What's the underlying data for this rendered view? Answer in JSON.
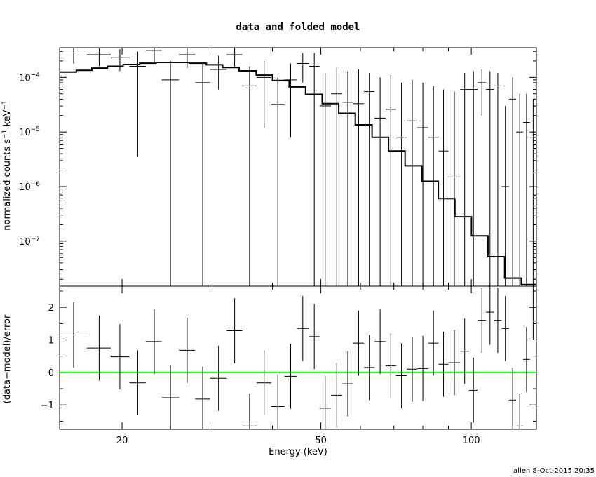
{
  "title": "data and folded model",
  "xlabel": "Energy (keV)",
  "stamp": "allen  8-Oct-2015 20:35",
  "colors": {
    "axes": "#000000",
    "zero_line": "#00ff00"
  },
  "chart_data": [
    {
      "type": "line",
      "panel": "top",
      "ylabel": "normalized counts s⁻¹ keV⁻¹",
      "xscale": "log",
      "yscale": "log",
      "xlim": [
        15,
        135
      ],
      "ylim": [
        1.5e-08,
        0.00035
      ],
      "xticks": [
        {
          "v": 20,
          "label": "20"
        },
        {
          "v": 50,
          "label": "50"
        },
        {
          "v": 100,
          "label": "100"
        }
      ],
      "yticks": [
        {
          "v": 0.0001,
          "base": "10",
          "exp": "−4"
        },
        {
          "v": 1e-05,
          "base": "10",
          "exp": "−5"
        },
        {
          "v": 1e-06,
          "base": "10",
          "exp": "−6"
        },
        {
          "v": 1e-07,
          "base": "10",
          "exp": "−7"
        }
      ],
      "series": [
        {
          "role": "model-step",
          "edges": [
            15,
            16.2,
            17.4,
            18.7,
            20.1,
            21.7,
            23.4,
            25.3,
            27.3,
            29.5,
            31.8,
            34.3,
            37.1,
            40.0,
            43.2,
            46.6,
            50.3,
            54.3,
            58.6,
            63.3,
            68.3,
            73.7,
            79.6,
            85.9,
            92.7,
            100.1,
            108.0,
            116.6,
            125.9,
            135
          ],
          "values": [
            0.000125,
            0.000135,
            0.000148,
            0.00016,
            0.000172,
            0.000182,
            0.000188,
            0.000188,
            0.000182,
            0.00017,
            0.000152,
            0.000132,
            0.00011,
            8.8e-05,
            6.7e-05,
            4.9e-05,
            3.3e-05,
            2.2e-05,
            1.35e-05,
            8e-06,
            4.5e-06,
            2.4e-06,
            1.25e-06,
            6e-07,
            2.8e-07,
            1.25e-07,
            5.2e-08,
            2.1e-08,
            1.6e-08
          ]
        },
        {
          "role": "data",
          "points": [
            {
              "x": 16.0,
              "xlo": 15.0,
              "xhi": 17.0,
              "y": 0.00028,
              "ylo": 0.00018,
              "yhi": 0.00035
            },
            {
              "x": 18.0,
              "xlo": 17.0,
              "xhi": 19.0,
              "y": 0.00026,
              "ylo": 0.00016,
              "yhi": 0.00034
            },
            {
              "x": 19.8,
              "xlo": 19.0,
              "xhi": 20.7,
              "y": 0.00023,
              "ylo": 0.00013,
              "yhi": 0.00033
            },
            {
              "x": 21.5,
              "xlo": 20.7,
              "xhi": 22.3,
              "y": 0.00016,
              "ylo": 3.5e-06,
              "yhi": 0.0003
            },
            {
              "x": 23.2,
              "xlo": 22.3,
              "xhi": 24.0,
              "y": 0.00031,
              "ylo": 0.00018,
              "yhi": 0.00035
            },
            {
              "x": 25.0,
              "xlo": 24.0,
              "xhi": 26.0,
              "y": 9e-05,
              "ylo": 1.5e-08,
              "yhi": 0.0002
            },
            {
              "x": 27.0,
              "xlo": 26.0,
              "xhi": 28.0,
              "y": 0.00026,
              "ylo": 0.00015,
              "yhi": 0.00035
            },
            {
              "x": 29.0,
              "xlo": 28.0,
              "xhi": 30.0,
              "y": 8e-05,
              "ylo": 1.5e-08,
              "yhi": 0.00018
            },
            {
              "x": 31.2,
              "xlo": 30.0,
              "xhi": 32.4,
              "y": 0.00014,
              "ylo": 6e-05,
              "yhi": 0.00025
            },
            {
              "x": 33.6,
              "xlo": 32.4,
              "xhi": 34.8,
              "y": 0.00026,
              "ylo": 0.00015,
              "yhi": 0.00035
            },
            {
              "x": 36.0,
              "xlo": 34.8,
              "xhi": 37.2,
              "y": 7e-05,
              "ylo": 1.5e-08,
              "yhi": 0.00016
            },
            {
              "x": 38.5,
              "xlo": 37.2,
              "xhi": 39.8,
              "y": 0.0001,
              "ylo": 1.2e-05,
              "yhi": 0.0002
            },
            {
              "x": 41.0,
              "xlo": 39.8,
              "xhi": 42.3,
              "y": 3.2e-05,
              "ylo": 1.5e-08,
              "yhi": 0.0001
            },
            {
              "x": 43.5,
              "xlo": 42.3,
              "xhi": 44.8,
              "y": 9e-05,
              "ylo": 8e-06,
              "yhi": 0.00018
            },
            {
              "x": 46.0,
              "xlo": 44.8,
              "xhi": 47.3,
              "y": 0.00018,
              "ylo": 8e-05,
              "yhi": 0.00028
            },
            {
              "x": 48.5,
              "xlo": 47.3,
              "xhi": 49.7,
              "y": 0.00016,
              "ylo": 1.5e-08,
              "yhi": 0.00028
            },
            {
              "x": 51.0,
              "xlo": 49.7,
              "xhi": 52.4,
              "y": 3e-05,
              "ylo": 1.5e-08,
              "yhi": 0.00012
            },
            {
              "x": 53.8,
              "xlo": 52.4,
              "xhi": 55.2,
              "y": 5e-05,
              "ylo": 1.5e-08,
              "yhi": 0.00015
            },
            {
              "x": 56.6,
              "xlo": 55.2,
              "xhi": 58.0,
              "y": 3.5e-05,
              "ylo": 1.5e-08,
              "yhi": 0.00013
            },
            {
              "x": 59.5,
              "xlo": 58.0,
              "xhi": 61.0,
              "y": 3.3e-05,
              "ylo": 1.5e-08,
              "yhi": 0.00014
            },
            {
              "x": 62.5,
              "xlo": 61.0,
              "xhi": 64.0,
              "y": 5.5e-05,
              "ylo": 1.5e-08,
              "yhi": 0.00012
            },
            {
              "x": 65.7,
              "xlo": 64.0,
              "xhi": 67.4,
              "y": 1.8e-05,
              "ylo": 1.5e-08,
              "yhi": 0.0001
            },
            {
              "x": 69.0,
              "xlo": 67.4,
              "xhi": 70.7,
              "y": 2.6e-05,
              "ylo": 1.5e-08,
              "yhi": 0.00011
            },
            {
              "x": 72.5,
              "xlo": 70.7,
              "xhi": 74.3,
              "y": 8e-06,
              "ylo": 1.5e-08,
              "yhi": 8e-05
            },
            {
              "x": 76.2,
              "xlo": 74.3,
              "xhi": 78.0,
              "y": 1.6e-05,
              "ylo": 1.5e-08,
              "yhi": 9e-05
            },
            {
              "x": 80.0,
              "xlo": 78.0,
              "xhi": 82.0,
              "y": 1.2e-05,
              "ylo": 1.5e-08,
              "yhi": 8e-05
            },
            {
              "x": 84.0,
              "xlo": 82.0,
              "xhi": 86.0,
              "y": 8e-06,
              "ylo": 1.5e-08,
              "yhi": 7e-05
            },
            {
              "x": 88.0,
              "xlo": 86.0,
              "xhi": 90.0,
              "y": 4.5e-06,
              "ylo": 1.5e-08,
              "yhi": 6e-05
            },
            {
              "x": 92.5,
              "xlo": 90.0,
              "xhi": 95.0,
              "y": 1.5e-06,
              "ylo": 1.5e-08,
              "yhi": 5.5e-05
            },
            {
              "x": 97.0,
              "xlo": 95.0,
              "xhi": 99.0,
              "y": 6e-05,
              "ylo": 1.5e-08,
              "yhi": 0.00012
            },
            {
              "x": 101.0,
              "xlo": 99.0,
              "xhi": 103.0,
              "y": 6e-05,
              "ylo": 1.5e-08,
              "yhi": 0.00013
            },
            {
              "x": 105.0,
              "xlo": 103.0,
              "xhi": 107.0,
              "y": 8e-05,
              "ylo": 2e-05,
              "yhi": 0.00014
            },
            {
              "x": 109.0,
              "xlo": 107.0,
              "xhi": 111.0,
              "y": 6e-05,
              "ylo": 1.5e-08,
              "yhi": 0.00013
            },
            {
              "x": 113.0,
              "xlo": 111.0,
              "xhi": 115.0,
              "y": 7e-05,
              "ylo": 1.5e-08,
              "yhi": 0.00012
            },
            {
              "x": 117.0,
              "xlo": 115.0,
              "xhi": 119.0,
              "y": 1e-06,
              "ylo": 1.5e-08,
              "yhi": 3e-05
            },
            {
              "x": 121.0,
              "xlo": 119.0,
              "xhi": 123.0,
              "y": 4e-05,
              "ylo": 1.5e-08,
              "yhi": 0.0001
            },
            {
              "x": 125.0,
              "xlo": 123.0,
              "xhi": 127.0,
              "y": 1e-05,
              "ylo": 1.5e-08,
              "yhi": 5e-05
            },
            {
              "x": 129.0,
              "xlo": 127.0,
              "xhi": 131.0,
              "y": 1.5e-05,
              "ylo": 1.5e-08,
              "yhi": 5e-05
            },
            {
              "x": 133.0,
              "xlo": 131.0,
              "xhi": 135.0,
              "y": 8e-06,
              "ylo": 1.5e-08,
              "yhi": 4e-05
            }
          ]
        }
      ]
    },
    {
      "type": "scatter",
      "panel": "bottom",
      "ylabel": "(data−model)/error",
      "xscale": "log",
      "yscale": "linear",
      "xlim": [
        15,
        135
      ],
      "ylim": [
        -1.75,
        2.65
      ],
      "xticks": [
        {
          "v": 20,
          "label": "20"
        },
        {
          "v": 50,
          "label": "50"
        },
        {
          "v": 100,
          "label": "100"
        }
      ],
      "yticks": [
        {
          "v": 2,
          "label": "2"
        },
        {
          "v": 1,
          "label": "1"
        },
        {
          "v": 0,
          "label": "0"
        },
        {
          "v": -1,
          "label": "−1"
        }
      ],
      "zero_line": 0,
      "points": [
        {
          "x": 16.0,
          "xlo": 15.0,
          "xhi": 17.0,
          "y": 1.15,
          "ylo": 0.15,
          "yhi": 2.15
        },
        {
          "x": 18.0,
          "xlo": 17.0,
          "xhi": 19.0,
          "y": 0.75,
          "ylo": -0.25,
          "yhi": 1.75
        },
        {
          "x": 19.8,
          "xlo": 19.0,
          "xhi": 20.7,
          "y": 0.48,
          "ylo": -0.52,
          "yhi": 1.48
        },
        {
          "x": 21.5,
          "xlo": 20.7,
          "xhi": 22.3,
          "y": -0.32,
          "ylo": -1.32,
          "yhi": 0.68
        },
        {
          "x": 23.2,
          "xlo": 22.3,
          "xhi": 24.0,
          "y": 0.95,
          "ylo": -0.05,
          "yhi": 1.95
        },
        {
          "x": 25.0,
          "xlo": 24.0,
          "xhi": 26.0,
          "y": -0.78,
          "ylo": -1.78,
          "yhi": 0.22
        },
        {
          "x": 27.0,
          "xlo": 26.0,
          "xhi": 28.0,
          "y": 0.68,
          "ylo": -0.32,
          "yhi": 1.68
        },
        {
          "x": 29.0,
          "xlo": 28.0,
          "xhi": 30.0,
          "y": -0.82,
          "ylo": -1.82,
          "yhi": 0.18
        },
        {
          "x": 31.2,
          "xlo": 30.0,
          "xhi": 32.4,
          "y": -0.18,
          "ylo": -1.18,
          "yhi": 0.82
        },
        {
          "x": 33.6,
          "xlo": 32.4,
          "xhi": 34.8,
          "y": 1.28,
          "ylo": 0.28,
          "yhi": 2.28
        },
        {
          "x": 36.0,
          "xlo": 34.8,
          "xhi": 37.2,
          "y": -1.65,
          "ylo": -1.75,
          "yhi": -0.65
        },
        {
          "x": 38.5,
          "xlo": 37.2,
          "xhi": 39.8,
          "y": -0.32,
          "ylo": -1.32,
          "yhi": 0.68
        },
        {
          "x": 41.0,
          "xlo": 39.8,
          "xhi": 42.3,
          "y": -1.05,
          "ylo": -1.75,
          "yhi": -0.05
        },
        {
          "x": 43.5,
          "xlo": 42.3,
          "xhi": 44.8,
          "y": -0.12,
          "ylo": -1.12,
          "yhi": 0.88
        },
        {
          "x": 46.0,
          "xlo": 44.8,
          "xhi": 47.3,
          "y": 1.35,
          "ylo": 0.35,
          "yhi": 2.35
        },
        {
          "x": 48.5,
          "xlo": 47.3,
          "xhi": 49.7,
          "y": 1.1,
          "ylo": 0.1,
          "yhi": 2.1
        },
        {
          "x": 51.0,
          "xlo": 49.7,
          "xhi": 52.4,
          "y": -1.1,
          "ylo": -1.75,
          "yhi": -0.1
        },
        {
          "x": 53.8,
          "xlo": 52.4,
          "xhi": 55.2,
          "y": -0.7,
          "ylo": -1.7,
          "yhi": 0.3
        },
        {
          "x": 56.6,
          "xlo": 55.2,
          "xhi": 58.0,
          "y": -0.35,
          "ylo": -1.35,
          "yhi": 0.65
        },
        {
          "x": 59.5,
          "xlo": 58.0,
          "xhi": 61.0,
          "y": 0.9,
          "ylo": -0.1,
          "yhi": 1.9
        },
        {
          "x": 62.5,
          "xlo": 61.0,
          "xhi": 64.0,
          "y": 0.15,
          "ylo": -0.85,
          "yhi": 1.15
        },
        {
          "x": 65.7,
          "xlo": 64.0,
          "xhi": 67.4,
          "y": 0.95,
          "ylo": -0.05,
          "yhi": 1.95
        },
        {
          "x": 69.0,
          "xlo": 67.4,
          "xhi": 70.7,
          "y": 0.2,
          "ylo": -0.8,
          "yhi": 1.2
        },
        {
          "x": 72.5,
          "xlo": 70.7,
          "xhi": 74.3,
          "y": -0.1,
          "ylo": -1.1,
          "yhi": 0.9
        },
        {
          "x": 76.2,
          "xlo": 74.3,
          "xhi": 78.0,
          "y": 0.1,
          "ylo": -0.9,
          "yhi": 1.1
        },
        {
          "x": 80.0,
          "xlo": 78.0,
          "xhi": 82.0,
          "y": 0.12,
          "ylo": -0.88,
          "yhi": 1.12
        },
        {
          "x": 84.0,
          "xlo": 82.0,
          "xhi": 86.0,
          "y": 0.9,
          "ylo": -0.1,
          "yhi": 1.9
        },
        {
          "x": 88.0,
          "xlo": 86.0,
          "xhi": 90.0,
          "y": 0.25,
          "ylo": -0.75,
          "yhi": 1.25
        },
        {
          "x": 92.5,
          "xlo": 90.0,
          "xhi": 95.0,
          "y": 0.3,
          "ylo": -0.7,
          "yhi": 1.3
        },
        {
          "x": 97.0,
          "xlo": 95.0,
          "xhi": 99.0,
          "y": 0.65,
          "ylo": -0.35,
          "yhi": 1.65
        },
        {
          "x": 101.0,
          "xlo": 99.0,
          "xhi": 103.0,
          "y": -0.55,
          "ylo": -1.55,
          "yhi": 0.45
        },
        {
          "x": 105.0,
          "xlo": 103.0,
          "xhi": 107.0,
          "y": 1.6,
          "ylo": 0.6,
          "yhi": 2.6
        },
        {
          "x": 109.0,
          "xlo": 107.0,
          "xhi": 111.0,
          "y": 1.85,
          "ylo": 0.85,
          "yhi": 2.65
        },
        {
          "x": 113.0,
          "xlo": 111.0,
          "xhi": 115.0,
          "y": 1.6,
          "ylo": 0.6,
          "yhi": 2.6
        },
        {
          "x": 117.0,
          "xlo": 115.0,
          "xhi": 119.0,
          "y": 1.35,
          "ylo": 0.35,
          "yhi": 2.35
        },
        {
          "x": 121.0,
          "xlo": 119.0,
          "xhi": 123.0,
          "y": -0.85,
          "ylo": -1.75,
          "yhi": 0.15
        },
        {
          "x": 125.0,
          "xlo": 123.0,
          "xhi": 127.0,
          "y": -1.65,
          "ylo": -1.75,
          "yhi": -0.65
        },
        {
          "x": 129.0,
          "xlo": 127.0,
          "xhi": 131.0,
          "y": 0.4,
          "ylo": -0.6,
          "yhi": 1.4
        },
        {
          "x": 133.0,
          "xlo": 131.0,
          "xhi": 135.0,
          "y": 2.0,
          "ylo": 1.0,
          "yhi": 2.65
        }
      ]
    }
  ]
}
